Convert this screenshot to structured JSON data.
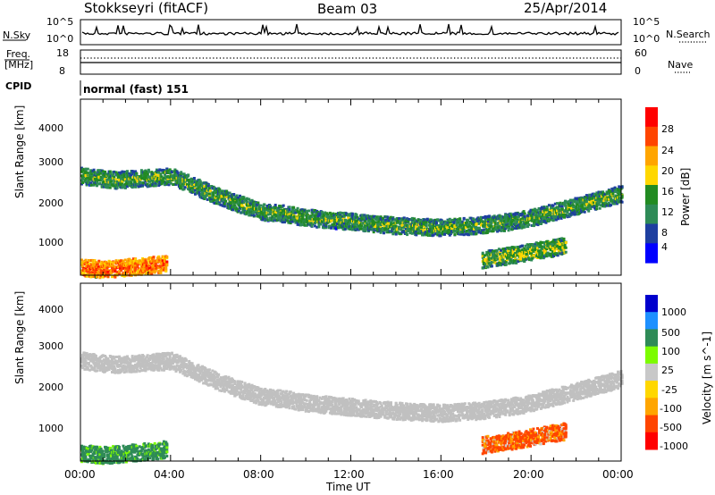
{
  "header": {
    "station": "Stokkseyri (fitACF)",
    "beam": "Beam 03",
    "date": "25/Apr/2014"
  },
  "strips": {
    "nsky_label": "N.Sky",
    "nsky_tick_top": "10^5",
    "nsky_tick_bottom": "10^0",
    "nsearch_label": "N.Search",
    "nsearch_tick_top": "10^5",
    "nsearch_tick_bottom": "10^0",
    "freq_label_1": "Freq.",
    "freq_label_2": "[MHz]",
    "freq_tick_top": "18",
    "freq_tick_bottom": "8",
    "nave_label": "Nave",
    "nave_tick_top": "60",
    "nave_tick_bottom": "0",
    "cpid_label": "CPID",
    "cpid_value": "normal (fast) 151"
  },
  "colors": {
    "power": [
      "#0000ff",
      "#1e3fa0",
      "#2e8b57",
      "#228b22",
      "#ffd700",
      "#ffa500",
      "#ff4500",
      "#ff0000"
    ],
    "velocity": [
      "#ff0000",
      "#ff4500",
      "#ffa500",
      "#ffd700",
      "#c8c8c8",
      "#7cfc00",
      "#2e8b57",
      "#1e90ff",
      "#0000cd"
    ],
    "ground_scatter": "#c0c0c0"
  },
  "chart_data": [
    {
      "type": "heatmap",
      "title": "",
      "xlabel": "Time UT",
      "ylabel": "Slant Range [km]",
      "x_ticks": [
        "00:00",
        "04:00",
        "08:00",
        "12:00",
        "16:00",
        "20:00",
        "00:00"
      ],
      "y_ticks": [
        "1000",
        "2000",
        "3000",
        "4000"
      ],
      "ylim": [
        180,
        4600
      ],
      "colorbar_label": "Power [dB]",
      "colorbar_ticks": [
        "4",
        "8",
        "12",
        "16",
        "20",
        "24",
        "28"
      ],
      "scatter_bands": [
        {
          "t": [
            0.0,
            1.5,
            3.0,
            4.0,
            5.0,
            6.0,
            7.0,
            8.0,
            9.0,
            10.0,
            11.0,
            12.0,
            14.0,
            16.0,
            17.5,
            19.0,
            20.0,
            21.0,
            22.0,
            23.0,
            24.0
          ],
          "r": [
            2700,
            2600,
            2650,
            2700,
            2450,
            2200,
            2000,
            1800,
            1750,
            1650,
            1600,
            1550,
            1450,
            1400,
            1450,
            1550,
            1650,
            1800,
            1950,
            2100,
            2250
          ],
          "level": 14
        },
        {
          "t": [
            0.0,
            1.0,
            2.0,
            3.0,
            3.8
          ],
          "r": [
            400,
            350,
            400,
            450,
            500
          ],
          "level": 26
        },
        {
          "t": [
            17.8,
            19.0,
            20.0,
            21.0,
            21.5
          ],
          "r": [
            600,
            700,
            800,
            900,
            950
          ],
          "level": 16
        }
      ]
    },
    {
      "type": "heatmap",
      "title": "",
      "xlabel": "Time UT",
      "ylabel": "Slant Range [km]",
      "x_ticks": [
        "00:00",
        "04:00",
        "08:00",
        "12:00",
        "16:00",
        "20:00",
        "00:00"
      ],
      "y_ticks": [
        "1000",
        "2000",
        "3000",
        "4000"
      ],
      "ylim": [
        180,
        4600
      ],
      "colorbar_label": "Velocity [m s^-1]",
      "colorbar_ticks": [
        "1000",
        "500",
        "100",
        "25",
        "-25",
        "-100",
        "-500",
        "-1000"
      ],
      "scatter_bands": [
        {
          "t": [
            0.0,
            1.5,
            3.0,
            4.0,
            5.0,
            6.0,
            7.0,
            8.0,
            9.0,
            10.0,
            11.0,
            12.0,
            14.0,
            16.0,
            17.5,
            19.0,
            20.0,
            21.0,
            22.0,
            23.0,
            24.0
          ],
          "r": [
            2700,
            2600,
            2650,
            2700,
            2450,
            2200,
            2000,
            1800,
            1750,
            1650,
            1600,
            1550,
            1450,
            1400,
            1450,
            1550,
            1650,
            1800,
            1950,
            2100,
            2250
          ],
          "velocity": 0
        },
        {
          "t": [
            0.0,
            1.0,
            2.0,
            3.0,
            3.8
          ],
          "r": [
            400,
            350,
            400,
            450,
            500
          ],
          "velocity": 200
        },
        {
          "t": [
            17.8,
            19.0,
            20.0,
            21.0,
            21.5
          ],
          "r": [
            600,
            700,
            800,
            900,
            950
          ],
          "velocity": -150
        }
      ]
    }
  ]
}
